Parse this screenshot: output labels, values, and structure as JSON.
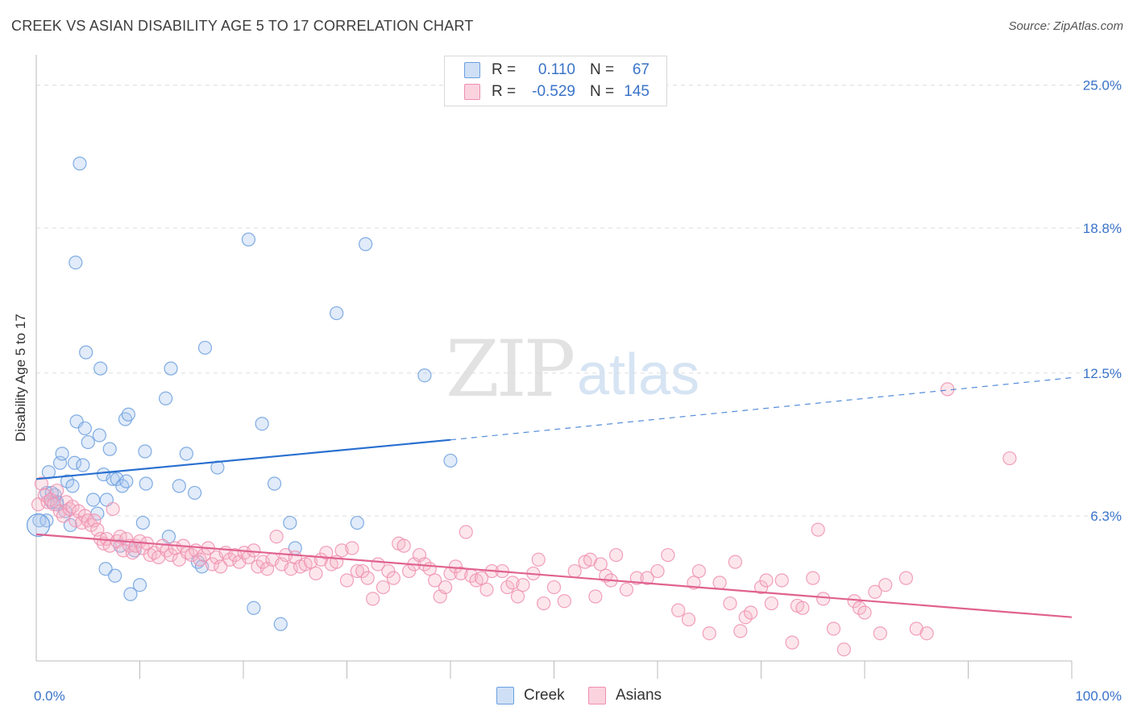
{
  "title": "CREEK VS ASIAN DISABILITY AGE 5 TO 17 CORRELATION CHART",
  "source": "Source: ZipAtlas.com",
  "watermark": {
    "zip": "ZIP",
    "atlas": "atlas"
  },
  "legend": [
    {
      "r_label": "R =",
      "r_value": "0.110",
      "n_label": "N =",
      "n_value": "67",
      "color": "#a9c7ee"
    },
    {
      "r_label": "R =",
      "r_value": "-0.529",
      "n_label": "N =",
      "n_value": "145",
      "color": "#f5b6c9"
    }
  ],
  "bottom_legend": [
    {
      "label": "Creek",
      "color": "#a9c7ee"
    },
    {
      "label": "Asians",
      "color": "#f5b6c9"
    }
  ],
  "chart_data": {
    "type": "scatter",
    "ylabel": "Disability Age 5 to 17",
    "xlim": [
      0,
      100
    ],
    "ylim": [
      0,
      25.9
    ],
    "x_tick_labels": {
      "left": "0.0%",
      "right": "100.0%"
    },
    "y_ticks": [
      6.3,
      12.5,
      18.8,
      25.0
    ],
    "y_tick_labels": [
      "6.3%",
      "12.5%",
      "18.8%",
      "25.0%"
    ],
    "grid": true,
    "series": [
      {
        "name": "Creek",
        "color": "#6b9fdf",
        "trend": {
          "x0": 0,
          "y0": 7.9,
          "x1": 40,
          "y1": 9.6,
          "extend_to": 100,
          "y_end": 12.3,
          "color": "#2970d0"
        },
        "points": [
          [
            0.3,
            6.1
          ],
          [
            1,
            7.3
          ],
          [
            1.5,
            6.9
          ],
          [
            1.2,
            8.2
          ],
          [
            1.8,
            7.2
          ],
          [
            2,
            6.8
          ],
          [
            2.3,
            8.6
          ],
          [
            2.5,
            9
          ],
          [
            2.8,
            6.5
          ],
          [
            3,
            7.8
          ],
          [
            3.3,
            5.9
          ],
          [
            3.5,
            7.6
          ],
          [
            3.7,
            8.6
          ],
          [
            3.9,
            10.4
          ],
          [
            4.2,
            21.6
          ],
          [
            3.8,
            17.3
          ],
          [
            4.5,
            8.5
          ],
          [
            4.7,
            10.1
          ],
          [
            4.8,
            13.4
          ],
          [
            5,
            9.5
          ],
          [
            5.5,
            7
          ],
          [
            5.9,
            6.4
          ],
          [
            6.2,
            12.7
          ],
          [
            6.1,
            9.8
          ],
          [
            6.5,
            8.1
          ],
          [
            6.8,
            7
          ],
          [
            6.7,
            4
          ],
          [
            7.1,
            9.2
          ],
          [
            7.4,
            7.9
          ],
          [
            7.6,
            3.7
          ],
          [
            7.8,
            7.9
          ],
          [
            8.1,
            5
          ],
          [
            8.3,
            7.6
          ],
          [
            8.6,
            10.5
          ],
          [
            8.9,
            10.7
          ],
          [
            8.7,
            7.8
          ],
          [
            9.1,
            2.9
          ],
          [
            9.5,
            4.8
          ],
          [
            10,
            3.3
          ],
          [
            10.3,
            6
          ],
          [
            10.5,
            9.1
          ],
          [
            10.6,
            7.7
          ],
          [
            12.5,
            11.4
          ],
          [
            12.8,
            5.4
          ],
          [
            13,
            12.7
          ],
          [
            13.8,
            7.6
          ],
          [
            14.5,
            9
          ],
          [
            15.3,
            7.3
          ],
          [
            15.6,
            4.3
          ],
          [
            16,
            4.1
          ],
          [
            16.3,
            13.6
          ],
          [
            17.5,
            8.4
          ],
          [
            20.5,
            18.3
          ],
          [
            21,
            2.3
          ],
          [
            21.8,
            10.3
          ],
          [
            23,
            7.7
          ],
          [
            23.6,
            1.6
          ],
          [
            24.5,
            6
          ],
          [
            25,
            4.9
          ],
          [
            29,
            15.1
          ],
          [
            31,
            6
          ],
          [
            31.8,
            18.1
          ],
          [
            37.5,
            12.4
          ],
          [
            40,
            8.7
          ],
          [
            1,
            6.1
          ],
          [
            1.5,
            7.3
          ],
          [
            2,
            6.9
          ]
        ]
      },
      {
        "name": "Asians",
        "color": "#ee8fb0",
        "trend": {
          "x0": 0,
          "y0": 5.5,
          "x1": 100,
          "y1": 1.9,
          "color": "#e0628f"
        },
        "points": [
          [
            0.2,
            6.8
          ],
          [
            0.5,
            7.7
          ],
          [
            0.8,
            7.2
          ],
          [
            1.1,
            6.9
          ],
          [
            1.4,
            7
          ],
          [
            1.7,
            6.8
          ],
          [
            2,
            7.4
          ],
          [
            2.3,
            6.5
          ],
          [
            2.6,
            6.3
          ],
          [
            2.9,
            6.9
          ],
          [
            3.2,
            6.6
          ],
          [
            3.5,
            6.7
          ],
          [
            3.8,
            6.1
          ],
          [
            4.1,
            6.5
          ],
          [
            4.4,
            6
          ],
          [
            4.7,
            6.3
          ],
          [
            5,
            6.1
          ],
          [
            5.3,
            5.9
          ],
          [
            5.6,
            6.1
          ],
          [
            5.9,
            5.7
          ],
          [
            6.2,
            5.3
          ],
          [
            6.5,
            5.1
          ],
          [
            6.8,
            5.3
          ],
          [
            7.1,
            5
          ],
          [
            7.4,
            6.6
          ],
          [
            7.8,
            5.2
          ],
          [
            8.1,
            5.4
          ],
          [
            8.4,
            4.8
          ],
          [
            8.7,
            5.3
          ],
          [
            9,
            5
          ],
          [
            9.3,
            4.7
          ],
          [
            9.6,
            5
          ],
          [
            10,
            5.2
          ],
          [
            10.3,
            4.9
          ],
          [
            10.7,
            5.1
          ],
          [
            11,
            4.6
          ],
          [
            11.4,
            4.7
          ],
          [
            11.8,
            4.5
          ],
          [
            12.2,
            5
          ],
          [
            12.6,
            4.8
          ],
          [
            13,
            4.6
          ],
          [
            13.4,
            4.9
          ],
          [
            13.8,
            4.4
          ],
          [
            14.2,
            5
          ],
          [
            14.6,
            4.7
          ],
          [
            15,
            4.6
          ],
          [
            15.4,
            4.8
          ],
          [
            15.8,
            4.4
          ],
          [
            16.2,
            4.6
          ],
          [
            16.6,
            4.9
          ],
          [
            17,
            4.2
          ],
          [
            17.4,
            4.5
          ],
          [
            17.8,
            4.1
          ],
          [
            18.3,
            4.7
          ],
          [
            18.7,
            4.4
          ],
          [
            19.2,
            4.6
          ],
          [
            19.6,
            4.3
          ],
          [
            20.1,
            4.7
          ],
          [
            20.5,
            4.5
          ],
          [
            21,
            4.8
          ],
          [
            21.4,
            4.1
          ],
          [
            21.9,
            4.3
          ],
          [
            22.3,
            4
          ],
          [
            22.8,
            4.4
          ],
          [
            23.2,
            5.4
          ],
          [
            23.7,
            4.2
          ],
          [
            24.1,
            4.6
          ],
          [
            24.6,
            4
          ],
          [
            25,
            4.5
          ],
          [
            25.5,
            4.1
          ],
          [
            26,
            4.2
          ],
          [
            26.5,
            4.3
          ],
          [
            27,
            3.8
          ],
          [
            27.5,
            4.4
          ],
          [
            28,
            4.7
          ],
          [
            28.5,
            4.2
          ],
          [
            29,
            4.3
          ],
          [
            29.5,
            4.8
          ],
          [
            30,
            3.5
          ],
          [
            30.5,
            4.9
          ],
          [
            31,
            3.9
          ],
          [
            31.5,
            3.9
          ],
          [
            32,
            3.6
          ],
          [
            32.5,
            2.7
          ],
          [
            33,
            4.2
          ],
          [
            33.5,
            3.2
          ],
          [
            34,
            3.9
          ],
          [
            34.5,
            3.6
          ],
          [
            35,
            5.1
          ],
          [
            35.5,
            5
          ],
          [
            36,
            3.9
          ],
          [
            36.5,
            4.2
          ],
          [
            37,
            4.6
          ],
          [
            37.5,
            4.2
          ],
          [
            38,
            4
          ],
          [
            38.5,
            3.5
          ],
          [
            39,
            2.8
          ],
          [
            39.5,
            3.2
          ],
          [
            40,
            3.8
          ],
          [
            40.5,
            4.1
          ],
          [
            41,
            3.8
          ],
          [
            41.5,
            5.6
          ],
          [
            42,
            3.7
          ],
          [
            42.5,
            3.5
          ],
          [
            43,
            3.6
          ],
          [
            43.5,
            3.1
          ],
          [
            44,
            3.9
          ],
          [
            45,
            3.9
          ],
          [
            45.5,
            3.2
          ],
          [
            46,
            3.4
          ],
          [
            46.5,
            2.8
          ],
          [
            47,
            3.3
          ],
          [
            48,
            3.8
          ],
          [
            48.5,
            4.4
          ],
          [
            49,
            2.5
          ],
          [
            50,
            3.2
          ],
          [
            51,
            2.6
          ],
          [
            52,
            3.9
          ],
          [
            53,
            4.3
          ],
          [
            53.5,
            4.4
          ],
          [
            54,
            2.8
          ],
          [
            54.5,
            4.2
          ],
          [
            55,
            3.7
          ],
          [
            55.5,
            3.5
          ],
          [
            56,
            4.6
          ],
          [
            57,
            3.1
          ],
          [
            58,
            3.6
          ],
          [
            59,
            3.6
          ],
          [
            60,
            3.9
          ],
          [
            61,
            4.6
          ],
          [
            62,
            2.2
          ],
          [
            63,
            1.8
          ],
          [
            63.5,
            3.4
          ],
          [
            64,
            3.9
          ],
          [
            65,
            1.2
          ],
          [
            66,
            3.4
          ],
          [
            67,
            2.5
          ],
          [
            67.5,
            4.3
          ],
          [
            68,
            1.3
          ],
          [
            68.5,
            1.9
          ],
          [
            69,
            2.1
          ],
          [
            70,
            3.2
          ],
          [
            70.5,
            3.5
          ],
          [
            71,
            2.5
          ],
          [
            72,
            3.5
          ],
          [
            73,
            0.8
          ],
          [
            73.5,
            2.4
          ],
          [
            74,
            2.3
          ],
          [
            75,
            3.6
          ],
          [
            75.5,
            5.7
          ],
          [
            76,
            2.7
          ],
          [
            77,
            1.4
          ],
          [
            78,
            0.5
          ],
          [
            79,
            2.6
          ],
          [
            79.5,
            2.3
          ],
          [
            80,
            2.1
          ],
          [
            81,
            3
          ],
          [
            81.5,
            1.2
          ],
          [
            82,
            3.3
          ],
          [
            84,
            3.6
          ],
          [
            85,
            1.4
          ],
          [
            86,
            1.2
          ],
          [
            88,
            11.8
          ],
          [
            94,
            8.8
          ]
        ]
      }
    ]
  }
}
